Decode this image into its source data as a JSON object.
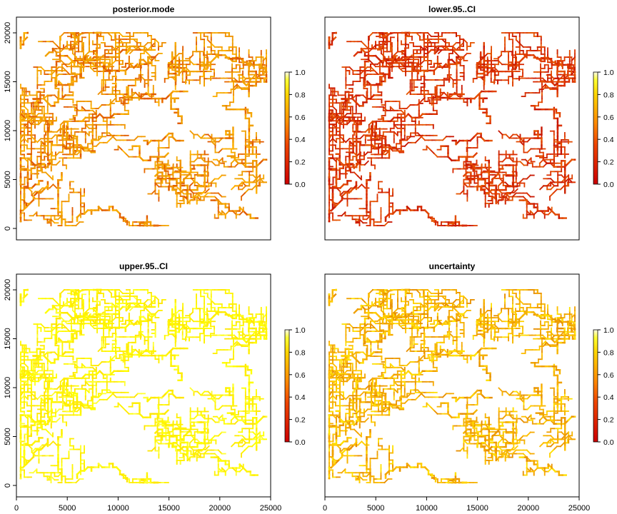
{
  "panels": [
    {
      "title": "posterior.mode",
      "palette": "mode",
      "show_x_ticks": false,
      "show_y_ticks": true,
      "colorbar": {
        "ticks": [
          "0.0",
          "0.2",
          "0.4",
          "0.6",
          "0.8",
          "1.0"
        ]
      }
    },
    {
      "title": "lower.95..CI",
      "palette": "lower",
      "show_x_ticks": false,
      "show_y_ticks": false,
      "colorbar": {
        "ticks": [
          "0.0",
          "0.2",
          "0.4",
          "0.6",
          "0.8",
          "1.0"
        ]
      }
    },
    {
      "title": "upper.95..CI",
      "palette": "upper",
      "show_x_ticks": true,
      "show_y_ticks": true,
      "colorbar": {
        "ticks": [
          "0.0",
          "0.2",
          "0.4",
          "0.6",
          "0.8",
          "1.0"
        ]
      }
    },
    {
      "title": "uncertainty",
      "palette": "uncert",
      "show_x_ticks": true,
      "show_y_ticks": false,
      "colorbar": {
        "ticks": [
          "0.0",
          "0.2",
          "0.4",
          "0.6",
          "0.8",
          "1.0"
        ]
      }
    }
  ],
  "colors": {
    "scale_low": "#cc0000",
    "scale_mid": "#ff8c00",
    "scale_high": "#ffff00",
    "scale_top": "#ffffe8"
  },
  "chart_data": [
    {
      "type": "heatmap",
      "title": "posterior.mode",
      "xlim": [
        0,
        25000
      ],
      "ylim": [
        0,
        20000
      ],
      "x_ticks": [
        0,
        5000,
        10000,
        15000,
        20000,
        25000
      ],
      "y_ticks": [
        0,
        5000,
        10000,
        15000,
        20000
      ],
      "x_tick_labels": [],
      "y_tick_labels": [
        "0",
        "5000",
        "10000",
        "15000",
        "20000"
      ],
      "color_range": [
        0,
        1
      ],
      "typical_value": 0.45,
      "value_spread": [
        0.3,
        0.6
      ]
    },
    {
      "type": "heatmap",
      "title": "lower.95..CI",
      "xlim": [
        0,
        25000
      ],
      "ylim": [
        0,
        20000
      ],
      "x_tick_labels": [],
      "y_tick_labels": [],
      "color_range": [
        0,
        1
      ],
      "typical_value": 0.15,
      "value_spread": [
        0.05,
        0.3
      ]
    },
    {
      "type": "heatmap",
      "title": "upper.95..CI",
      "xlim": [
        0,
        25000
      ],
      "ylim": [
        0,
        20000
      ],
      "x_tick_labels": [
        "0",
        "5000",
        "10000",
        "15000",
        "20000",
        "25000"
      ],
      "y_tick_labels": [
        "0",
        "5000",
        "10000",
        "15000",
        "20000"
      ],
      "color_range": [
        0,
        1
      ],
      "typical_value": 0.75,
      "value_spread": [
        0.65,
        0.85
      ]
    },
    {
      "type": "heatmap",
      "title": "uncertainty",
      "xlim": [
        0,
        25000
      ],
      "ylim": [
        0,
        20000
      ],
      "x_tick_labels": [
        "0",
        "5000",
        "10000",
        "15000",
        "20000",
        "25000"
      ],
      "y_tick_labels": [],
      "color_range": [
        0,
        1
      ],
      "typical_value": 0.5,
      "value_spread": [
        0.4,
        0.65
      ]
    }
  ]
}
